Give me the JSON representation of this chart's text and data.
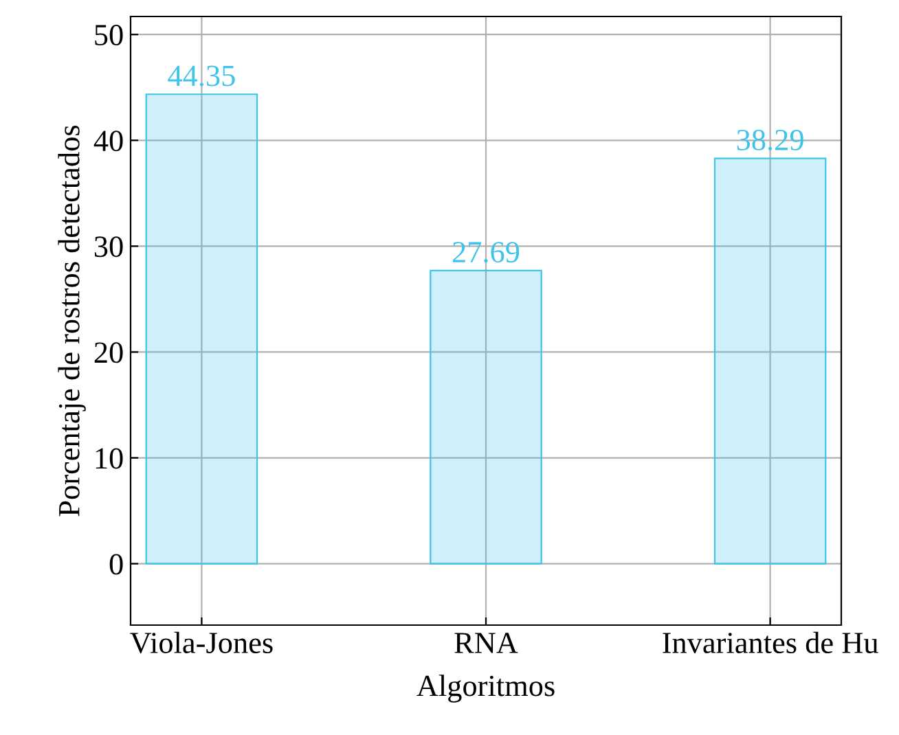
{
  "chart_data": {
    "type": "bar",
    "xlabel": "Algoritmos",
    "ylabel": "Porcentaje de rostros detectados",
    "categories": [
      "Viola-Jones",
      "RNA",
      "Invariantes de Hu"
    ],
    "series": [
      {
        "color": "#3ec3ea",
        "values": [
          44.35,
          27.69,
          38.29
        ]
      }
    ],
    "ylim": [
      -5.8,
      51.7
    ],
    "yticks": [
      0,
      10,
      20,
      30,
      40,
      50
    ],
    "grid": true,
    "data_labels": true
  }
}
